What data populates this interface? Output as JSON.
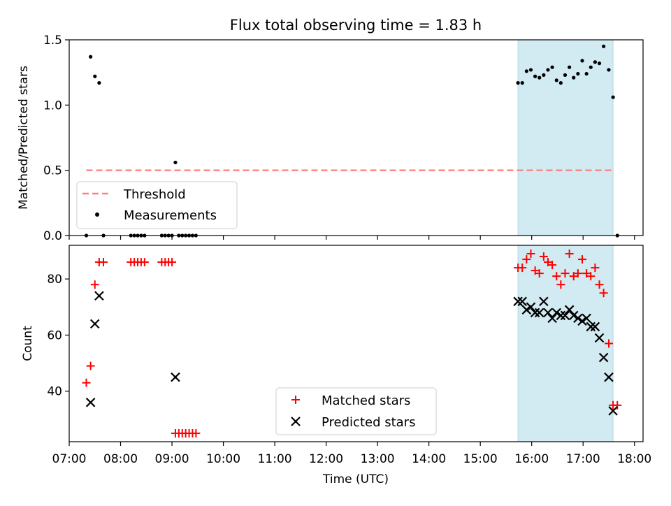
{
  "figure_title": "Flux total observing time = 1.83 h",
  "colors": {
    "threshold": "#ff8080",
    "shade": "#add8e6",
    "matched": "#ff0000",
    "predicted": "#000000"
  },
  "chart_data": [
    {
      "type": "scatter",
      "title": "Flux total observing time = 1.83 h",
      "xlabel": "",
      "ylabel": "Matched/Predicted stars",
      "xlim": [
        "07:00",
        "18:10"
      ],
      "ylim": [
        0,
        1.5
      ],
      "yticks": [
        "0.0",
        "0.5",
        "1.0",
        "1.5"
      ],
      "shaded_region": {
        "x_start": "15:44",
        "x_end": "17:35"
      },
      "legend": {
        "placement": "lower-left",
        "entries": [
          "Threshold",
          "Measurements"
        ]
      },
      "series": [
        {
          "name": "Threshold",
          "kind": "dashed-line",
          "x": [
            "07:20",
            "17:35"
          ],
          "y": [
            0.5,
            0.5
          ]
        },
        {
          "name": "Measurements",
          "kind": "point",
          "x": [
            "07:20",
            "07:25",
            "07:30",
            "07:35",
            "07:40",
            "08:12",
            "08:16",
            "08:20",
            "08:24",
            "08:28",
            "08:48",
            "08:52",
            "08:56",
            "09:00",
            "09:04",
            "09:08",
            "09:12",
            "09:16",
            "09:20",
            "09:24",
            "09:28",
            "15:44",
            "15:49",
            "15:54",
            "15:59",
            "16:04",
            "16:09",
            "16:14",
            "16:19",
            "16:24",
            "16:29",
            "16:34",
            "16:39",
            "16:44",
            "16:49",
            "16:54",
            "16:59",
            "17:04",
            "17:09",
            "17:14",
            "17:19",
            "17:24",
            "17:30",
            "17:35",
            "17:40"
          ],
          "y": [
            0.0,
            1.37,
            1.22,
            1.17,
            0.0,
            0.0,
            0.0,
            0.0,
            0.0,
            0.0,
            0.0,
            0.0,
            0.0,
            0.0,
            0.56,
            0.0,
            0.0,
            0.0,
            0.0,
            0.0,
            0.0,
            1.17,
            1.17,
            1.26,
            1.27,
            1.22,
            1.21,
            1.23,
            1.27,
            1.29,
            1.19,
            1.17,
            1.23,
            1.29,
            1.21,
            1.24,
            1.34,
            1.24,
            1.29,
            1.33,
            1.32,
            1.45,
            1.27,
            1.06,
            0.0
          ]
        }
      ]
    },
    {
      "type": "scatter",
      "title": "",
      "xlabel": "Time (UTC)",
      "ylabel": "Count",
      "xlim": [
        "07:00",
        "18:10"
      ],
      "ylim": [
        22,
        92
      ],
      "xticks": [
        "07:00",
        "08:00",
        "09:00",
        "10:00",
        "11:00",
        "12:00",
        "13:00",
        "14:00",
        "15:00",
        "16:00",
        "17:00",
        "18:00"
      ],
      "yticks": [
        "40",
        "60",
        "80"
      ],
      "shaded_region": {
        "x_start": "15:44",
        "x_end": "17:35"
      },
      "legend": {
        "placement": "lower-center",
        "entries": [
          "Matched stars",
          "Predicted stars"
        ]
      },
      "series": [
        {
          "name": "Matched stars",
          "kind": "plus",
          "x": [
            "07:20",
            "07:25",
            "07:30",
            "07:35",
            "07:40",
            "08:12",
            "08:16",
            "08:20",
            "08:24",
            "08:28",
            "08:48",
            "08:52",
            "08:56",
            "09:00",
            "09:04",
            "09:08",
            "09:12",
            "09:16",
            "09:20",
            "09:24",
            "09:28",
            "15:44",
            "15:49",
            "15:54",
            "15:59",
            "16:04",
            "16:09",
            "16:14",
            "16:19",
            "16:24",
            "16:29",
            "16:34",
            "16:39",
            "16:44",
            "16:49",
            "16:54",
            "16:59",
            "17:04",
            "17:09",
            "17:14",
            "17:19",
            "17:24",
            "17:30",
            "17:35",
            "17:40"
          ],
          "y": [
            43,
            49,
            78,
            86,
            86,
            86,
            86,
            86,
            86,
            86,
            86,
            86,
            86,
            86,
            25,
            25,
            25,
            25,
            25,
            25,
            25,
            84,
            84,
            87,
            89,
            83,
            82,
            88,
            86,
            85,
            81,
            78,
            82,
            89,
            81,
            82,
            87,
            82,
            81,
            84,
            78,
            75,
            57,
            35,
            35
          ]
        },
        {
          "name": "Predicted stars",
          "kind": "cross",
          "x": [
            "07:25",
            "07:30",
            "07:35",
            "09:04",
            "15:44",
            "15:49",
            "15:54",
            "15:59",
            "16:04",
            "16:09",
            "16:14",
            "16:19",
            "16:24",
            "16:29",
            "16:34",
            "16:39",
            "16:44",
            "16:49",
            "16:54",
            "16:59",
            "17:04",
            "17:09",
            "17:14",
            "17:19",
            "17:24",
            "17:30",
            "17:35"
          ],
          "y": [
            36,
            64,
            74,
            45,
            72,
            72,
            69,
            70,
            68,
            68,
            72,
            68,
            66,
            68,
            67,
            67,
            69,
            67,
            66,
            65,
            66,
            63,
            63,
            59,
            52,
            45,
            33
          ]
        }
      ]
    }
  ]
}
